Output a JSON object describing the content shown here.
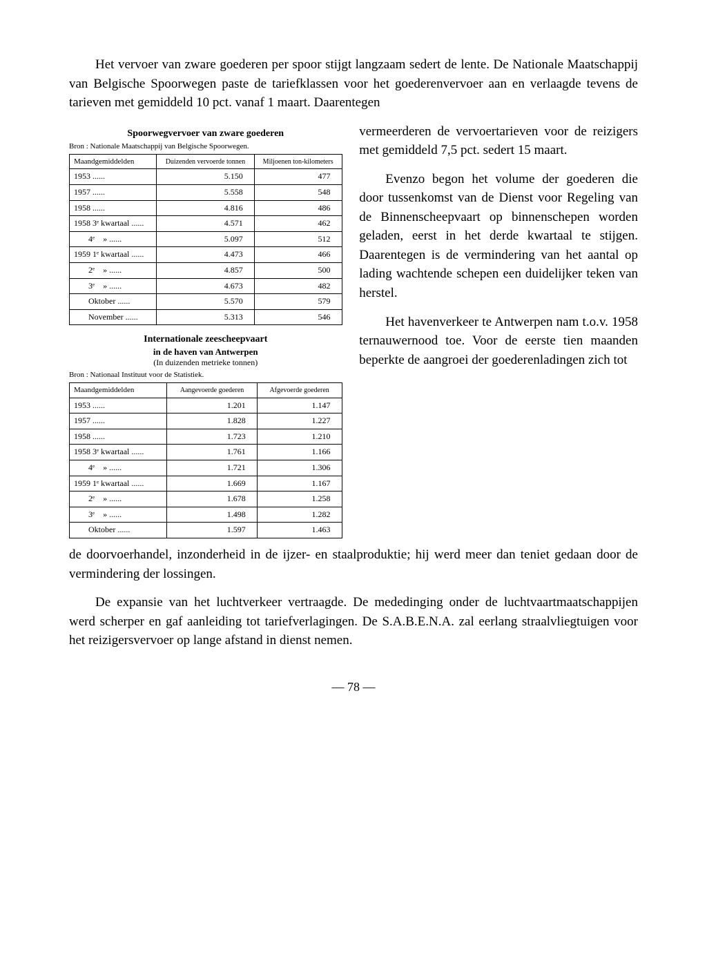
{
  "intro_para": "Het vervoer van zware goederen per spoor stijgt langzaam sedert de lente. De Nationale Maatschappij van Belgische Spoorwegen paste de tariefklassen voor het goederenvervoer aan en verlaagde tevens de tarieven met gemiddeld 10 pct. vanaf 1 maart. Daarentegen",
  "rightcol": {
    "p1": "vermeerderen de vervoertarieven voor de reizigers met gemiddeld 7,5 pct. sedert 15 maart.",
    "p2": "Evenzo begon het volume der goederen die door tussenkomst van de Dienst voor Regeling van de Binnenscheepvaart op binnenschepen worden geladen, eerst in het derde kwartaal te stijgen. Daarentegen is de vermindering van het aantal op lading wachtende schepen een duidelijker teken van herstel.",
    "p3": "Het havenverkeer te Antwerpen nam t.o.v. 1958 ternauwernood toe. Voor de eerste tien maanden beperkte de aangroei der goederenladingen zich tot"
  },
  "table1": {
    "title": "Spoorwegvervoer van zware goederen",
    "source": "Bron : Nationale Maatschappij van Belgische Spoorwegen.",
    "head_period": "Maandgemiddelden",
    "head_col1": "Duizenden vervoerde tonnen",
    "head_col2": "Miljoenen ton-kilometers",
    "rows": [
      {
        "label": "1953",
        "c1": "5.150",
        "c2": "477"
      },
      {
        "label": "1957",
        "c1": "5.558",
        "c2": "548"
      },
      {
        "label": "1958",
        "c1": "4.816",
        "c2": "486"
      },
      {
        "label": "1958 3ᵉ kwartaal",
        "c1": "4.571",
        "c2": "462"
      },
      {
        "label": "       4ᵉ    »",
        "c1": "5.097",
        "c2": "512"
      },
      {
        "label": "1959 1ᵉ kwartaal",
        "c1": "4.473",
        "c2": "466"
      },
      {
        "label": "       2ᵉ    »",
        "c1": "4.857",
        "c2": "500"
      },
      {
        "label": "       3ᵉ    »",
        "c1": "4.673",
        "c2": "482"
      },
      {
        "label": "       Oktober",
        "c1": "5.570",
        "c2": "579"
      },
      {
        "label": "       November",
        "c1": "5.313",
        "c2": "546"
      }
    ]
  },
  "table2": {
    "title1": "Internationale zeescheepvaart",
    "title2": "in de haven van Antwerpen",
    "title3": "(In duizenden metrieke tonnen)",
    "source": "Bron : Nationaal Instituut voor de Statistiek.",
    "head_period": "Maandgemiddelden",
    "head_col1": "Aangevoerde goederen",
    "head_col2": "Afgevoerde goederen",
    "rows": [
      {
        "label": "1953",
        "c1": "1.201",
        "c2": "1.147"
      },
      {
        "label": "1957",
        "c1": "1.828",
        "c2": "1.227"
      },
      {
        "label": "1958",
        "c1": "1.723",
        "c2": "1.210"
      },
      {
        "label": "1958 3ᵉ kwartaal",
        "c1": "1.761",
        "c2": "1.166"
      },
      {
        "label": "       4ᵉ    »",
        "c1": "1.721",
        "c2": "1.306"
      },
      {
        "label": "1959 1ᵉ kwartaal",
        "c1": "1.669",
        "c2": "1.167"
      },
      {
        "label": "       2ᵉ    »",
        "c1": "1.678",
        "c2": "1.258"
      },
      {
        "label": "       3ᵉ    »",
        "c1": "1.498",
        "c2": "1.282"
      },
      {
        "label": "       Oktober",
        "c1": "1.597",
        "c2": "1.463"
      }
    ]
  },
  "after_para": "de doorvoerhandel, inzonderheid in de ijzer- en staalproduktie; hij werd meer dan teniet gedaan door de vermindering der lossingen.",
  "last_para": "De expansie van het luchtverkeer vertraagde. De mededinging onder de luchtvaartmaatschappijen werd scherper en gaf aanleiding tot tariefverlagingen. De S.A.B.E.N.A. zal eerlang straalvliegtuigen voor het reizigersvervoer op lange afstand in dienst nemen.",
  "pagenum": "— 78 —"
}
